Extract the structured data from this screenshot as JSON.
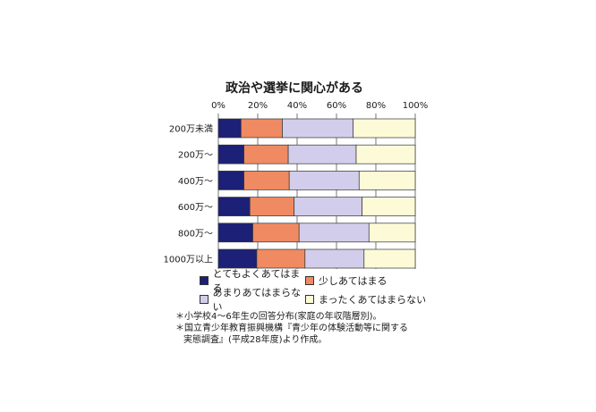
{
  "chart_data": {
    "type": "bar",
    "orientation": "horizontal",
    "stacked": true,
    "title": "政治や選挙に関心がある",
    "xlim": [
      0,
      100
    ],
    "x_ticks": [
      "0%",
      "20%",
      "40%",
      "60%",
      "80%",
      "100%"
    ],
    "categories": [
      "200万未満",
      "200万～",
      "400万～",
      "600万～",
      "800万～",
      "1000万以上"
    ],
    "series": [
      {
        "name": "とてもよくあてはまる",
        "color": "#1c2076",
        "values": [
          11.5,
          13,
          13,
          16,
          17.5,
          19.5
        ]
      },
      {
        "name": "少しあてはまる",
        "color": "#ef8a62",
        "values": [
          21,
          22.5,
          23,
          22.5,
          23.5,
          24.5
        ]
      },
      {
        "name": "あまりあてはまらない",
        "color": "#d2cdea",
        "values": [
          36,
          34.5,
          35.5,
          34.5,
          35.5,
          30
        ]
      },
      {
        "name": "まったくあてはまらない",
        "color": "#fdfad7",
        "values": [
          31.5,
          30,
          28.5,
          27,
          23.5,
          26
        ]
      }
    ],
    "legend_position": "bottom",
    "grid": true
  },
  "notes": [
    "＊小学校4～6年生の回答分布(家庭の年収階層別)。",
    "＊国立青少年教育振興機構『青少年の体験活動等に関する",
    "実態調査』(平成28年度)より作成。"
  ]
}
